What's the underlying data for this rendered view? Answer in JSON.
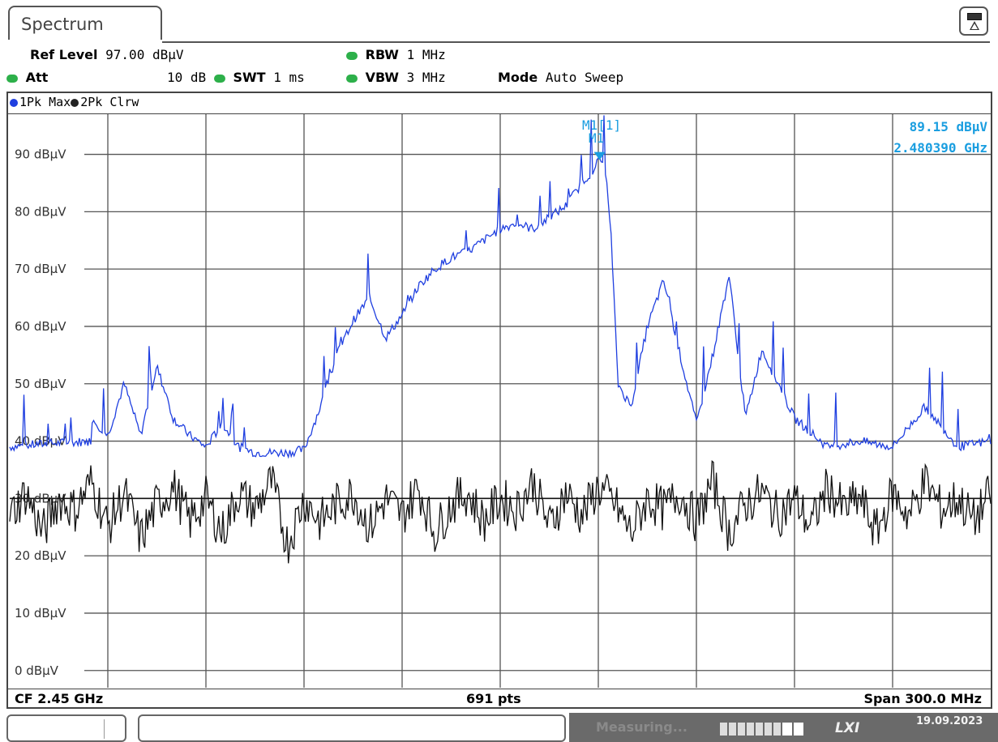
{
  "window": {
    "tab_title": "Spectrum"
  },
  "params": {
    "ref_level_label": "Ref Level",
    "ref_level_value": "97.00 dBµV",
    "att_label": "Att",
    "att_value": "10 dB",
    "swt_label": "SWT",
    "swt_value": "1 ms",
    "rbw_label": "RBW",
    "rbw_value": "1 MHz",
    "vbw_label": "VBW",
    "vbw_value": "3 MHz",
    "mode_label": "Mode",
    "mode_value": "Auto Sweep",
    "indicator_color": "#2db04a"
  },
  "legend": {
    "trace1": "1Pk Max",
    "trace2": "2Pk Clrw"
  },
  "marker": {
    "name": "M1[1]",
    "label": "M1",
    "level": "89.15 dBµV",
    "freq": "2.480390 GHz",
    "color": "#1a9ee0"
  },
  "footer": {
    "cf": "CF 2.45 GHz",
    "points": "691 pts",
    "span": "Span 300.0 MHz"
  },
  "status": {
    "state": "Measuring...",
    "lxi": "LXI",
    "date": "19.09.2023"
  },
  "chart_data": {
    "type": "line",
    "xlabel": "",
    "ylabel": "",
    "x_unit": "GHz",
    "x_range": [
      2.3,
      2.6
    ],
    "y_range": [
      -3,
      97
    ],
    "y_ticks": [
      0,
      10,
      20,
      30,
      40,
      50,
      60,
      70,
      80,
      90
    ],
    "y_tick_labels": [
      "0 dBµV",
      "10 dBµV",
      "20 dBµV",
      "30 dBµV",
      "40 dBµV",
      "50 dBµV",
      "60 dBµV",
      "70 dBµV",
      "80 dBµV",
      "90 dBµV"
    ],
    "grid": true,
    "display_line": 30,
    "series": [
      {
        "name": "1Pk Max",
        "color": "#1f3fe0",
        "x": [
          2.3,
          2.31,
          2.325,
          2.32,
          2.33,
          2.335,
          2.34,
          2.345,
          2.35,
          2.355,
          2.36,
          2.365,
          2.37,
          2.375,
          2.38,
          2.385,
          2.39,
          2.395,
          2.4,
          2.405,
          2.41,
          2.415,
          2.42,
          2.425,
          2.43,
          2.435,
          2.44,
          2.445,
          2.45,
          2.455,
          2.46,
          2.465,
          2.47,
          2.475,
          2.478,
          2.4804,
          2.482,
          2.484,
          2.486,
          2.49,
          2.495,
          2.5,
          2.505,
          2.51,
          2.515,
          2.52,
          2.525,
          2.53,
          2.54,
          2.55,
          2.56,
          2.57,
          2.58,
          2.59,
          2.6
        ],
        "y": [
          39,
          39.5,
          40,
          47,
          41,
          50,
          41,
          53,
          44,
          41,
          39,
          43,
          39,
          38,
          38,
          38,
          38.5,
          46,
          55,
          61,
          65,
          58,
          62,
          67,
          70,
          72,
          73,
          75,
          77,
          78,
          77,
          79,
          81,
          85,
          87,
          89.15,
          88,
          75,
          50,
          46,
          60,
          68,
          55,
          43,
          55,
          69,
          44,
          56,
          44,
          39,
          40,
          39,
          46,
          39,
          40
        ]
      },
      {
        "name": "2Pk Clrw",
        "color": "#111111",
        "x": [
          2.3,
          2.305,
          2.31,
          2.315,
          2.32,
          2.325,
          2.33,
          2.335,
          2.34,
          2.345,
          2.35,
          2.355,
          2.36,
          2.365,
          2.37,
          2.375,
          2.38,
          2.385,
          2.39,
          2.395,
          2.4,
          2.405,
          2.41,
          2.415,
          2.42,
          2.425,
          2.43,
          2.435,
          2.44,
          2.445,
          2.45,
          2.455,
          2.46,
          2.465,
          2.47,
          2.475,
          2.48,
          2.485,
          2.49,
          2.495,
          2.5,
          2.505,
          2.51,
          2.515,
          2.52,
          2.525,
          2.53,
          2.535,
          2.54,
          2.545,
          2.55,
          2.555,
          2.56,
          2.565,
          2.57,
          2.575,
          2.58,
          2.585,
          2.59,
          2.595,
          2.6
        ],
        "y": [
          27,
          31,
          24,
          30,
          28,
          33,
          25,
          31,
          23,
          29,
          32,
          26,
          30,
          24,
          31,
          28,
          33,
          22,
          30,
          26,
          29,
          31,
          25,
          30,
          27,
          32,
          24,
          29,
          31,
          26,
          30,
          28,
          33,
          25,
          31,
          27,
          32,
          29,
          24,
          30,
          28,
          31,
          26,
          33,
          24,
          29,
          31,
          27,
          30,
          25,
          32,
          28,
          30,
          24,
          31,
          27,
          33,
          28,
          30,
          26,
          31
        ]
      }
    ]
  }
}
